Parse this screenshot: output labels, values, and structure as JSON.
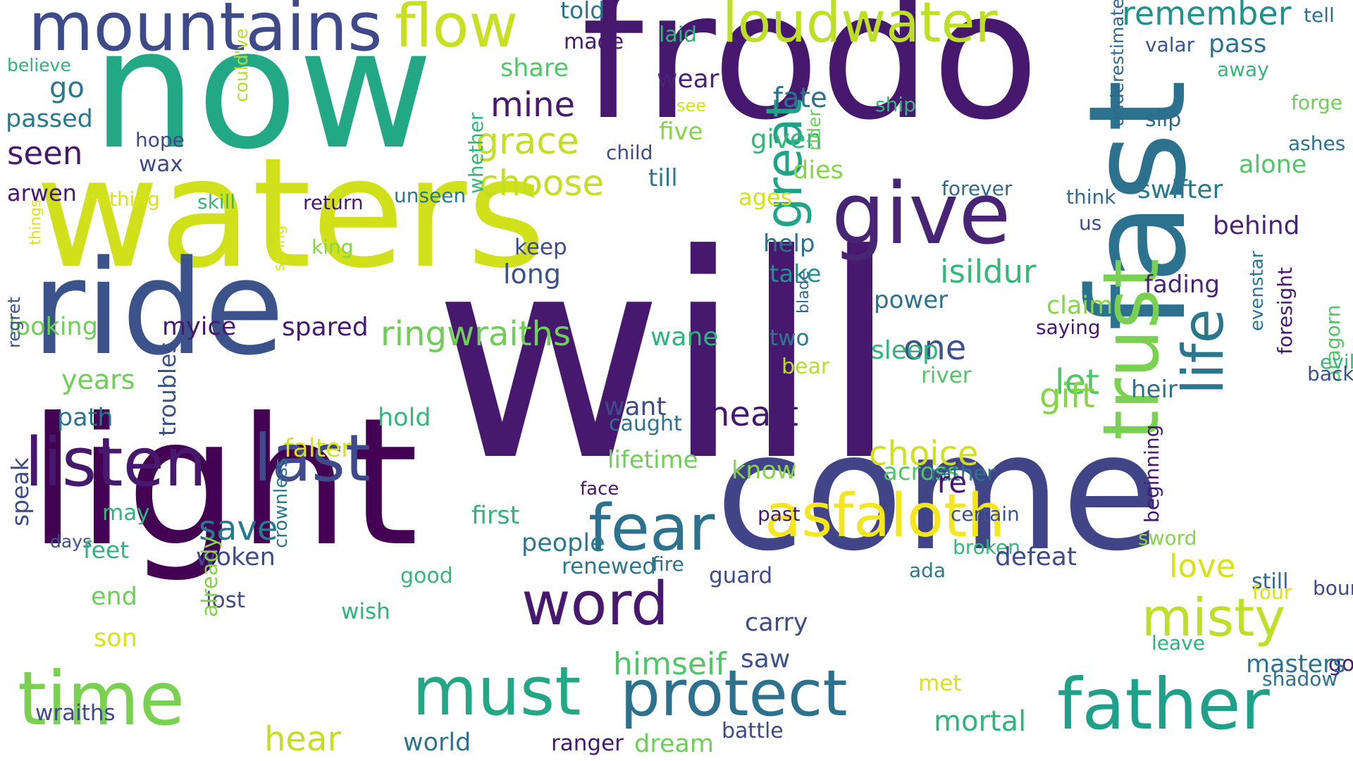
{
  "words": [
    {
      "text": "will",
      "color": "#46186e",
      "vertical": false
    },
    {
      "text": "frodo",
      "color": "#46186e",
      "vertical": false
    },
    {
      "text": "now",
      "color": "#22a884",
      "vertical": false
    },
    {
      "text": "waters",
      "color": "#d0e11c",
      "vertical": false
    },
    {
      "text": "light",
      "color": "#440154",
      "vertical": false
    },
    {
      "text": "come",
      "color": "#414487",
      "vertical": false
    },
    {
      "text": "ride",
      "color": "#3b528b",
      "vertical": false
    },
    {
      "text": "fast",
      "color": "#2c728e",
      "vertical": true
    },
    {
      "text": "trust",
      "color": "#7ad151",
      "vertical": true
    },
    {
      "text": "life",
      "color": "#2a788e",
      "vertical": true
    },
    {
      "text": "mountains",
      "color": "#3e4a89",
      "vertical": false
    },
    {
      "text": "flow",
      "color": "#c8e020",
      "vertical": false
    },
    {
      "text": "loudwater",
      "color": "#bddf26",
      "vertical": false
    },
    {
      "text": "give",
      "color": "#482475",
      "vertical": false
    },
    {
      "text": "listen",
      "color": "#46186e",
      "vertical": false
    },
    {
      "text": "last",
      "color": "#3e4a89",
      "vertical": false
    },
    {
      "text": "asfaloth",
      "color": "#f4e61e",
      "vertical": false
    },
    {
      "text": "fear",
      "color": "#2c728e",
      "vertical": false
    },
    {
      "text": "time",
      "color": "#7ad151",
      "vertical": false
    },
    {
      "text": "must",
      "color": "#22a884",
      "vertical": false
    },
    {
      "text": "protect",
      "color": "#2c728e",
      "vertical": false
    },
    {
      "text": "word",
      "color": "#46186e",
      "vertical": false
    },
    {
      "text": "father",
      "color": "#1fa088",
      "vertical": false
    },
    {
      "text": "misty",
      "color": "#bddf26",
      "vertical": false
    },
    {
      "text": "great",
      "color": "#20a386",
      "vertical": true
    },
    {
      "text": "remember",
      "color": "#21918c",
      "vertical": false
    },
    {
      "text": "told",
      "color": "#2c728e",
      "vertical": false
    },
    {
      "text": "made",
      "color": "#46186e",
      "vertical": false
    },
    {
      "text": "laid",
      "color": "#2fb47c",
      "vertical": false
    },
    {
      "text": "share",
      "color": "#52c569",
      "vertical": false
    },
    {
      "text": "wear",
      "color": "#482475",
      "vertical": false
    },
    {
      "text": "mine",
      "color": "#46186e",
      "vertical": false
    },
    {
      "text": "grace",
      "color": "#c2df23",
      "vertical": false
    },
    {
      "text": "choose",
      "color": "#c2df23",
      "vertical": false
    },
    {
      "text": "fate",
      "color": "#2c728e",
      "vertical": false
    },
    {
      "text": "five",
      "color": "#86d549",
      "vertical": false
    },
    {
      "text": "child",
      "color": "#3e4a89",
      "vertical": false
    },
    {
      "text": "till",
      "color": "#2a788e",
      "vertical": false
    },
    {
      "text": "see",
      "color": "#d2e21b",
      "vertical": false
    },
    {
      "text": "given",
      "color": "#35b779",
      "vertical": false
    },
    {
      "text": "dies",
      "color": "#86d549",
      "vertical": false
    },
    {
      "text": "ages",
      "color": "#d2e21b",
      "vertical": false
    },
    {
      "text": "ship",
      "color": "#35b779",
      "vertical": false
    },
    {
      "text": "underestimate",
      "color": "#31688e",
      "vertical": true
    },
    {
      "text": "valar",
      "color": "#3b528b",
      "vertical": false
    },
    {
      "text": "pass",
      "color": "#2c728e",
      "vertical": false
    },
    {
      "text": "tell",
      "color": "#2c728e",
      "vertical": false
    },
    {
      "text": "away",
      "color": "#35b779",
      "vertical": false
    },
    {
      "text": "forge",
      "color": "#6ece58",
      "vertical": false
    },
    {
      "text": "slip",
      "color": "#31688e",
      "vertical": false
    },
    {
      "text": "ashes",
      "color": "#2c728e",
      "vertical": false
    },
    {
      "text": "alone",
      "color": "#52c569",
      "vertical": false
    },
    {
      "text": "forever",
      "color": "#31688e",
      "vertical": false
    },
    {
      "text": "think",
      "color": "#31688e",
      "vertical": false
    },
    {
      "text": "swifter",
      "color": "#2a788e",
      "vertical": false
    },
    {
      "text": "us",
      "color": "#3e4a89",
      "vertical": false
    },
    {
      "text": "behind",
      "color": "#482475",
      "vertical": false
    },
    {
      "text": "believe",
      "color": "#2fb47c",
      "vertical": false
    },
    {
      "text": "go",
      "color": "#2a788e",
      "vertical": false
    },
    {
      "text": "passed",
      "color": "#2a788e",
      "vertical": false
    },
    {
      "text": "hope",
      "color": "#3e4a89",
      "vertical": false
    },
    {
      "text": "seen",
      "color": "#46186e",
      "vertical": false
    },
    {
      "text": "wax",
      "color": "#3e4a89",
      "vertical": false
    },
    {
      "text": "could've",
      "color": "#b5de2b",
      "vertical": true
    },
    {
      "text": "arwen",
      "color": "#46186e",
      "vertical": false
    },
    {
      "text": "nothing",
      "color": "#d8e219",
      "vertical": false
    },
    {
      "text": "skill",
      "color": "#35b779",
      "vertical": false
    },
    {
      "text": "return",
      "color": "#46186e",
      "vertical": false
    },
    {
      "text": "unseen",
      "color": "#2a788e",
      "vertical": false
    },
    {
      "text": "whether",
      "color": "#35b779",
      "vertical": true
    },
    {
      "text": "rider",
      "color": "#6ece58",
      "vertical": true
    },
    {
      "text": "help",
      "color": "#2c728e",
      "vertical": false
    },
    {
      "text": "take",
      "color": "#21918c",
      "vertical": false
    },
    {
      "text": "isildur",
      "color": "#35b779",
      "vertical": false
    },
    {
      "text": "keep",
      "color": "#3e4a89",
      "vertical": false
    },
    {
      "text": "long",
      "color": "#3b528b",
      "vertical": false
    },
    {
      "text": "king",
      "color": "#86d549",
      "vertical": false
    },
    {
      "text": "spring",
      "color": "#d8e219",
      "vertical": true
    },
    {
      "text": "things",
      "color": "#d8e219",
      "vertical": true
    },
    {
      "text": "looking",
      "color": "#6ece58",
      "vertical": false
    },
    {
      "text": "myice",
      "color": "#46186e",
      "vertical": false
    },
    {
      "text": "spared",
      "color": "#46186e",
      "vertical": false
    },
    {
      "text": "ringwraiths",
      "color": "#6ece58",
      "vertical": false
    },
    {
      "text": "power",
      "color": "#2c728e",
      "vertical": false
    },
    {
      "text": "claim",
      "color": "#86d549",
      "vertical": false
    },
    {
      "text": "fading",
      "color": "#482475",
      "vertical": false
    },
    {
      "text": "saying",
      "color": "#46186e",
      "vertical": false
    },
    {
      "text": "two",
      "color": "#2a788e",
      "vertical": false
    },
    {
      "text": "wane",
      "color": "#2fb47c",
      "vertical": false
    },
    {
      "text": "one",
      "color": "#3b528b",
      "vertical": false
    },
    {
      "text": "blade",
      "color": "#31688e",
      "vertical": true
    },
    {
      "text": "bear",
      "color": "#b5de2b",
      "vertical": false
    },
    {
      "text": "river",
      "color": "#52c569",
      "vertical": false
    },
    {
      "text": "let",
      "color": "#52c569",
      "vertical": false
    },
    {
      "text": "heir",
      "color": "#2c728e",
      "vertical": false
    },
    {
      "text": "aragorn",
      "color": "#52c569",
      "vertical": true
    },
    {
      "text": "foresight",
      "color": "#46186e",
      "vertical": true
    },
    {
      "text": "evenstar",
      "color": "#2a788e",
      "vertical": true
    },
    {
      "text": "regret",
      "color": "#3b528b",
      "vertical": true
    },
    {
      "text": "years",
      "color": "#6ece58",
      "vertical": false
    },
    {
      "text": "path",
      "color": "#2c728e",
      "vertical": false
    },
    {
      "text": "hold",
      "color": "#35b779",
      "vertical": false
    },
    {
      "text": "want",
      "color": "#3e4a89",
      "vertical": false
    },
    {
      "text": "heart",
      "color": "#46186e",
      "vertical": false
    },
    {
      "text": "sleep",
      "color": "#2fb47c",
      "vertical": false
    },
    {
      "text": "gift",
      "color": "#86d549",
      "vertical": false
    },
    {
      "text": "evil",
      "color": "#35b779",
      "vertical": false
    },
    {
      "text": "caught",
      "color": "#2c728e",
      "vertical": false
    },
    {
      "text": "choice",
      "color": "#d0e11c",
      "vertical": false
    },
    {
      "text": "back",
      "color": "#3b528b",
      "vertical": false
    },
    {
      "text": "troubles",
      "color": "#3b528b",
      "vertical": true
    },
    {
      "text": "falter",
      "color": "#d8e219",
      "vertical": false
    },
    {
      "text": "lifetime",
      "color": "#6ece58",
      "vertical": false
    },
    {
      "text": "know",
      "color": "#86d549",
      "vertical": false
    },
    {
      "text": "across",
      "color": "#52c569",
      "vertical": false
    },
    {
      "text": "rather",
      "color": "#2c728e",
      "vertical": false
    },
    {
      "text": "re",
      "color": "#46186e",
      "vertical": false
    },
    {
      "text": "face",
      "color": "#46186e",
      "vertical": false
    },
    {
      "text": "may",
      "color": "#2fb47c",
      "vertical": false
    },
    {
      "text": "save",
      "color": "#2a788e",
      "vertical": false
    },
    {
      "text": "first",
      "color": "#2fb47c",
      "vertical": false
    },
    {
      "text": "past",
      "color": "#46186e",
      "vertical": false
    },
    {
      "text": "certain",
      "color": "#3b528b",
      "vertical": false
    },
    {
      "text": "sword",
      "color": "#86d549",
      "vertical": false
    },
    {
      "text": "broken",
      "color": "#35b779",
      "vertical": false
    },
    {
      "text": "beginning",
      "color": "#46186e",
      "vertical": true
    },
    {
      "text": "speak",
      "color": "#3e4a89",
      "vertical": true
    },
    {
      "text": "days",
      "color": "#3b528b",
      "vertical": false
    },
    {
      "text": "feet",
      "color": "#2fb47c",
      "vertical": false
    },
    {
      "text": "woken",
      "color": "#3e4a89",
      "vertical": false
    },
    {
      "text": "crownless",
      "color": "#2a788e",
      "vertical": true
    },
    {
      "text": "wish",
      "color": "#2fb47c",
      "vertical": false
    },
    {
      "text": "guard",
      "color": "#3e4a89",
      "vertical": false
    },
    {
      "text": "good",
      "color": "#35b779",
      "vertical": false
    },
    {
      "text": "people",
      "color": "#2a788e",
      "vertical": false
    },
    {
      "text": "renewed",
      "color": "#2a788e",
      "vertical": false
    },
    {
      "text": "ada",
      "color": "#2a788e",
      "vertical": false
    },
    {
      "text": "defeat",
      "color": "#3e4a89",
      "vertical": false
    },
    {
      "text": "fire",
      "color": "#2c728e",
      "vertical": false
    },
    {
      "text": "love",
      "color": "#d8e219",
      "vertical": false
    },
    {
      "text": "still",
      "color": "#31688e",
      "vertical": false
    },
    {
      "text": "bound",
      "color": "#3e4a89",
      "vertical": false
    },
    {
      "text": "end",
      "color": "#6ece58",
      "vertical": false
    },
    {
      "text": "lost",
      "color": "#3e4a89",
      "vertical": false
    },
    {
      "text": "four",
      "color": "#d8e219",
      "vertical": false
    },
    {
      "text": "already",
      "color": "#86d549",
      "vertical": true
    },
    {
      "text": "son",
      "color": "#d8e219",
      "vertical": false
    },
    {
      "text": "carry",
      "color": "#3e4a89",
      "vertical": false
    },
    {
      "text": "leave",
      "color": "#2fb47c",
      "vertical": false
    },
    {
      "text": "going",
      "color": "#46186e",
      "vertical": false
    },
    {
      "text": "saw",
      "color": "#3b528b",
      "vertical": false
    },
    {
      "text": "himseif",
      "color": "#52c569",
      "vertical": false
    },
    {
      "text": "masters",
      "color": "#2c728e",
      "vertical": false
    },
    {
      "text": "shadow",
      "color": "#2c728e",
      "vertical": false
    },
    {
      "text": "met",
      "color": "#d8e219",
      "vertical": false
    },
    {
      "text": "mortal",
      "color": "#2fb47c",
      "vertical": false
    },
    {
      "text": "wraiths",
      "color": "#3e4a89",
      "vertical": false
    },
    {
      "text": "hear",
      "color": "#c2df23",
      "vertical": false
    },
    {
      "text": "world",
      "color": "#2c728e",
      "vertical": false
    },
    {
      "text": "ranger",
      "color": "#46186e",
      "vertical": false
    },
    {
      "text": "dream",
      "color": "#6ece58",
      "vertical": false
    },
    {
      "text": "battle",
      "color": "#3e4a89",
      "vertical": false
    }
  ]
}
